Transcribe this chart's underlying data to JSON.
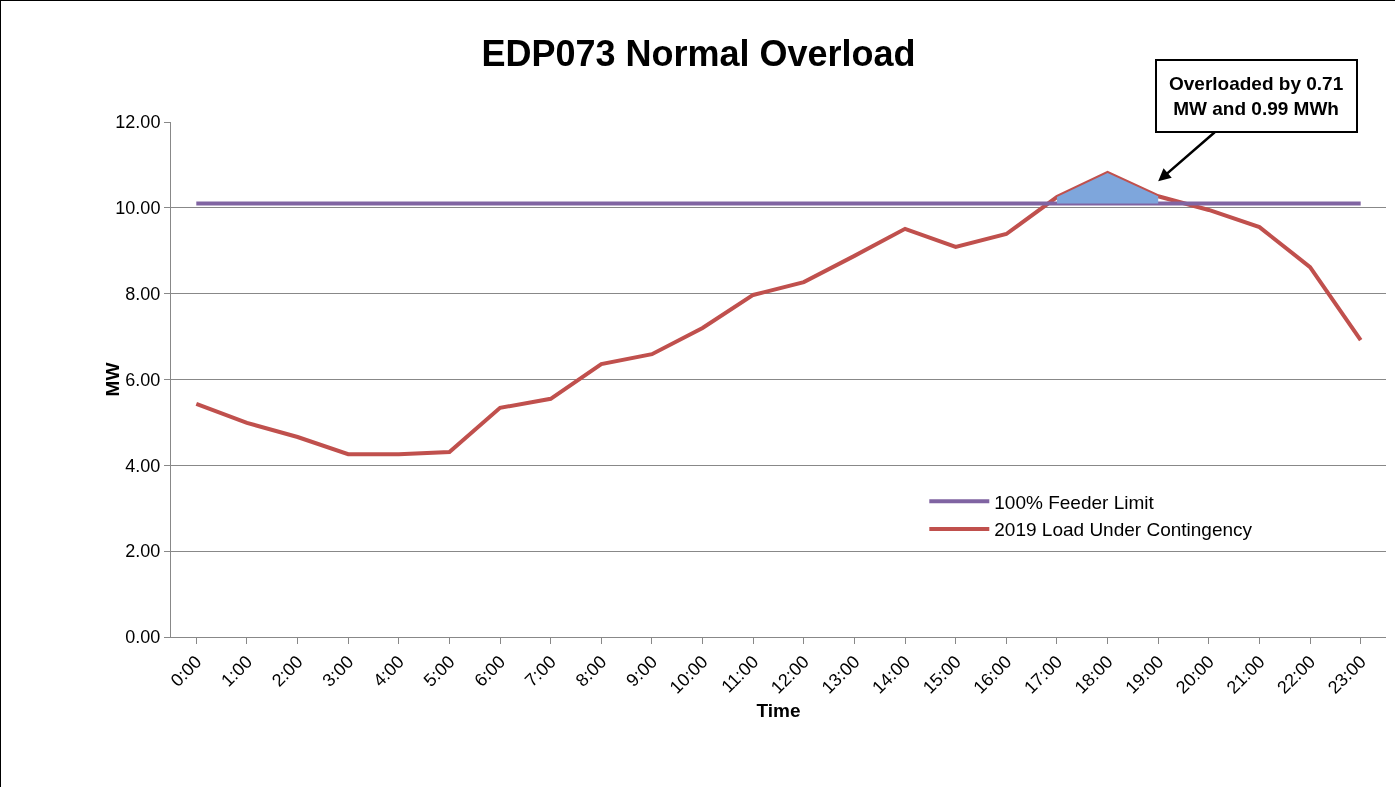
{
  "chart_data": {
    "type": "line",
    "title": "EDP073 Normal Overload",
    "xlabel": "Time",
    "ylabel": "MW",
    "categories": [
      "0:00",
      "1:00",
      "2:00",
      "3:00",
      "4:00",
      "5:00",
      "6:00",
      "7:00",
      "8:00",
      "9:00",
      "10:00",
      "11:00",
      "12:00",
      "13:00",
      "14:00",
      "15:00",
      "16:00",
      "17:00",
      "18:00",
      "19:00",
      "20:00",
      "21:00",
      "22:00",
      "23:00"
    ],
    "series": [
      {
        "name": "2019 Load Under Contingency",
        "color": "#c0504d",
        "values": [
          5.43,
          4.99,
          4.66,
          4.26,
          4.26,
          4.31,
          5.34,
          5.55,
          6.36,
          6.59,
          7.2,
          7.97,
          8.27,
          8.88,
          9.51,
          9.09,
          9.39,
          10.25,
          10.81,
          10.27,
          9.95,
          9.55,
          8.62,
          6.92
        ]
      },
      {
        "name": "100% Feeder Limit",
        "color": "#8064a2",
        "values": [
          10.1,
          10.1,
          10.1,
          10.1,
          10.1,
          10.1,
          10.1,
          10.1,
          10.1,
          10.1,
          10.1,
          10.1,
          10.1,
          10.1,
          10.1,
          10.1,
          10.1,
          10.1,
          10.1,
          10.1,
          10.1,
          10.1,
          10.1,
          10.1
        ]
      },
      {
        "type": "area",
        "color": "#7ea6dc",
        "values": [
          null,
          null,
          null,
          null,
          null,
          null,
          null,
          null,
          null,
          null,
          null,
          null,
          null,
          null,
          null,
          null,
          null,
          10.25,
          10.81,
          10.27,
          null,
          null,
          null,
          null
        ]
      }
    ],
    "ylim": [
      0,
      12
    ],
    "yticks": [
      {
        "value": 0,
        "label": "0.00"
      },
      {
        "value": 2,
        "label": "2.00"
      },
      {
        "value": 4,
        "label": "4.00"
      },
      {
        "value": 6,
        "label": "6.00"
      },
      {
        "value": 8,
        "label": "8.00"
      },
      {
        "value": 10,
        "label": "10.00"
      },
      {
        "value": 12,
        "label": "12.00"
      }
    ],
    "grid": "y",
    "legend": "bottom right",
    "marker": "none",
    "line_style": "solid",
    "annotations": [
      "Overloaded by 0.71 MW and 0.99 MWh"
    ]
  }
}
